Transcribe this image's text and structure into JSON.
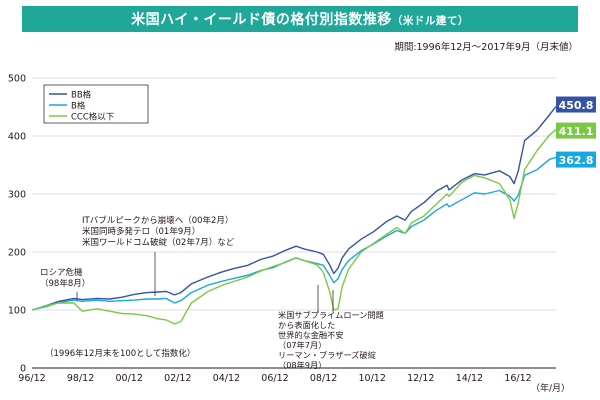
{
  "header": {
    "title": "米国ハイ・イールド債の格付別指数推移",
    "title_note": "（米ドル建て）",
    "period": "期間:1996年12月〜2017年9月（月末値）"
  },
  "chart_data": {
    "type": "line",
    "title": "米国ハイ・イールド債の格付別指数推移",
    "x_tick_labels": [
      "96/12",
      "98/12",
      "00/12",
      "02/12",
      "04/12",
      "06/12",
      "08/12",
      "10/12",
      "12/12",
      "14/12",
      "16/12"
    ],
    "x_unit": "（年/月）",
    "ylim": [
      0,
      500
    ],
    "y_ticks": [
      0,
      100,
      200,
      300,
      400,
      500
    ],
    "grid": true,
    "legend_position": "top-left",
    "x": [
      1996.917,
      1997.5,
      1998.0,
      1998.583,
      1998.917,
      1999.5,
      2000.0,
      2000.5,
      2001.0,
      2001.5,
      2001.917,
      2002.25,
      2002.583,
      2002.833,
      2003.25,
      2003.917,
      2004.5,
      2005.0,
      2005.5,
      2006.0,
      2006.5,
      2007.0,
      2007.417,
      2007.75,
      2008.25,
      2008.5,
      2008.75,
      2008.917,
      2009.083,
      2009.25,
      2009.5,
      2010.0,
      2010.5,
      2011.0,
      2011.417,
      2011.75,
      2012.0,
      2012.5,
      2013.0,
      2013.417,
      2013.5,
      2014.0,
      2014.5,
      2014.917,
      2015.5,
      2015.917,
      2016.083,
      2016.25,
      2016.5,
      2017.0,
      2017.5,
      2017.75
    ],
    "series": [
      {
        "name": "BB格",
        "color": "#3553a4",
        "values": [
          100,
          108,
          115,
          120,
          118,
          120,
          119,
          122,
          127,
          130,
          131,
          132,
          126,
          130,
          145,
          157,
          166,
          172,
          177,
          187,
          193,
          203,
          210,
          205,
          200,
          196,
          178,
          163,
          172,
          190,
          205,
          222,
          235,
          252,
          262,
          255,
          270,
          285,
          305,
          315,
          307,
          324,
          335,
          333,
          340,
          330,
          318,
          340,
          392,
          410,
          437,
          450.8
        ]
      },
      {
        "name": "B格",
        "color": "#17a8e0",
        "values": [
          100,
          106,
          113,
          117,
          115,
          117,
          115,
          116,
          117,
          119,
          119,
          120,
          112,
          116,
          130,
          143,
          150,
          155,
          160,
          168,
          173,
          183,
          190,
          185,
          180,
          177,
          160,
          147,
          154,
          170,
          185,
          202,
          214,
          227,
          237,
          232,
          244,
          255,
          272,
          283,
          278,
          290,
          302,
          300,
          306,
          296,
          288,
          298,
          332,
          342,
          360,
          362.8
        ]
      },
      {
        "name": "CCC格以下",
        "color": "#7ac943",
        "values": [
          100,
          108,
          112,
          112,
          98,
          102,
          98,
          94,
          93,
          90,
          85,
          83,
          76,
          80,
          112,
          132,
          143,
          150,
          157,
          167,
          175,
          182,
          190,
          185,
          178,
          165,
          132,
          100,
          102,
          140,
          170,
          200,
          215,
          230,
          242,
          232,
          250,
          262,
          283,
          300,
          296,
          320,
          332,
          328,
          318,
          290,
          258,
          285,
          342,
          375,
          402,
          411.1
        ]
      }
    ],
    "end_labels": [
      "450.8",
      "411.1",
      "362.8"
    ],
    "annotations": {
      "russia": [
        "ロシア危機",
        "（98年8月）"
      ],
      "it": [
        "ITバブルピークから崩壊へ（00年2月）",
        "米国同時多発テロ（01年9月）",
        "米国ワールドコム破綻（02年7月）など"
      ],
      "base_note": "（1996年12月末を100として指数化）",
      "subprime": [
        "米国サブプライムローン問題",
        "から表面化した",
        "世界的な金融不安",
        "（07年7月）",
        "リーマン・ブラザーズ破綻",
        "（08年9月）"
      ]
    }
  }
}
